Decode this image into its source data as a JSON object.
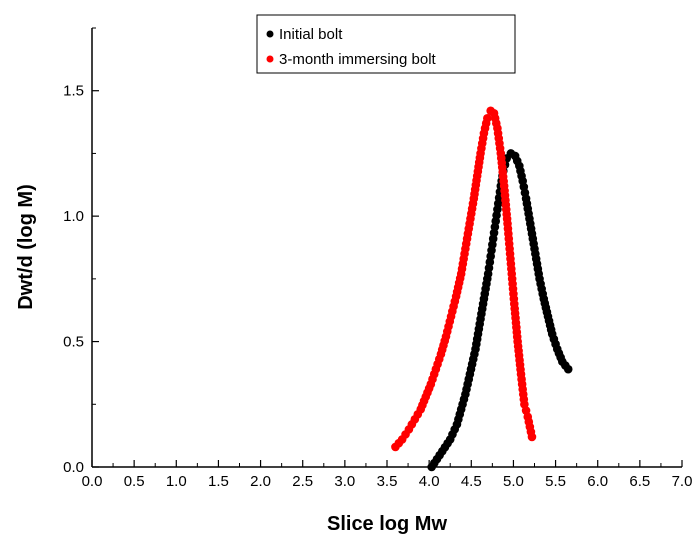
{
  "chart_data": {
    "type": "scatter",
    "title": "",
    "xlabel": "Slice log Mw",
    "ylabel": "Dwt/d (log M)",
    "xlim": [
      0.0,
      7.0
    ],
    "ylim": [
      0.0,
      1.75
    ],
    "x_ticks": [
      "0.0",
      "0.5",
      "1.0",
      "1.5",
      "2.0",
      "2.5",
      "3.0",
      "3.5",
      "4.0",
      "4.5",
      "5.0",
      "5.5",
      "6.0",
      "6.5",
      "7.0"
    ],
    "y_ticks": [
      "0.0",
      "0.5",
      "1.0",
      "1.5"
    ],
    "grid": false,
    "legend_position": "top-center",
    "series": [
      {
        "name": "Initial bolt",
        "color": "#000000",
        "points": [
          [
            4.03,
            0.0
          ],
          [
            4.25,
            0.11
          ],
          [
            4.33,
            0.17
          ],
          [
            4.38,
            0.23
          ],
          [
            4.43,
            0.29
          ],
          [
            4.47,
            0.35
          ],
          [
            4.51,
            0.41
          ],
          [
            4.55,
            0.47
          ],
          [
            4.58,
            0.53
          ],
          [
            4.61,
            0.59
          ],
          [
            4.64,
            0.65
          ],
          [
            4.67,
            0.71
          ],
          [
            4.7,
            0.77
          ],
          [
            4.73,
            0.84
          ],
          [
            4.76,
            0.91
          ],
          [
            4.79,
            0.98
          ],
          [
            4.82,
            1.05
          ],
          [
            4.85,
            1.12
          ],
          [
            4.88,
            1.18
          ],
          [
            4.92,
            1.23
          ],
          [
            4.97,
            1.25
          ],
          [
            5.02,
            1.24
          ],
          [
            5.07,
            1.2
          ],
          [
            5.11,
            1.14
          ],
          [
            5.15,
            1.07
          ],
          [
            5.19,
            0.99
          ],
          [
            5.23,
            0.91
          ],
          [
            5.27,
            0.83
          ],
          [
            5.31,
            0.75
          ],
          [
            5.36,
            0.67
          ],
          [
            5.41,
            0.6
          ],
          [
            5.46,
            0.53
          ],
          [
            5.52,
            0.47
          ],
          [
            5.58,
            0.42
          ],
          [
            5.65,
            0.39
          ]
        ]
      },
      {
        "name": "3-month immersing bolt",
        "color": "#ff0000",
        "points": [
          [
            3.6,
            0.08
          ],
          [
            3.68,
            0.11
          ],
          [
            3.76,
            0.15
          ],
          [
            3.83,
            0.19
          ],
          [
            3.9,
            0.23
          ],
          [
            3.96,
            0.28
          ],
          [
            4.02,
            0.33
          ],
          [
            4.08,
            0.39
          ],
          [
            4.14,
            0.45
          ],
          [
            4.2,
            0.52
          ],
          [
            4.26,
            0.6
          ],
          [
            4.32,
            0.68
          ],
          [
            4.38,
            0.77
          ],
          [
            4.43,
            0.87
          ],
          [
            4.48,
            0.97
          ],
          [
            4.53,
            1.07
          ],
          [
            4.57,
            1.16
          ],
          [
            4.61,
            1.25
          ],
          [
            4.65,
            1.33
          ],
          [
            4.69,
            1.39
          ],
          [
            4.73,
            1.42
          ],
          [
            4.77,
            1.41
          ],
          [
            4.81,
            1.35
          ],
          [
            4.85,
            1.25
          ],
          [
            4.89,
            1.12
          ],
          [
            4.93,
            0.97
          ],
          [
            4.97,
            0.81
          ],
          [
            5.01,
            0.65
          ],
          [
            5.05,
            0.5
          ],
          [
            5.09,
            0.37
          ],
          [
            5.13,
            0.25
          ],
          [
            5.17,
            0.2
          ],
          [
            5.22,
            0.12
          ]
        ]
      }
    ]
  }
}
